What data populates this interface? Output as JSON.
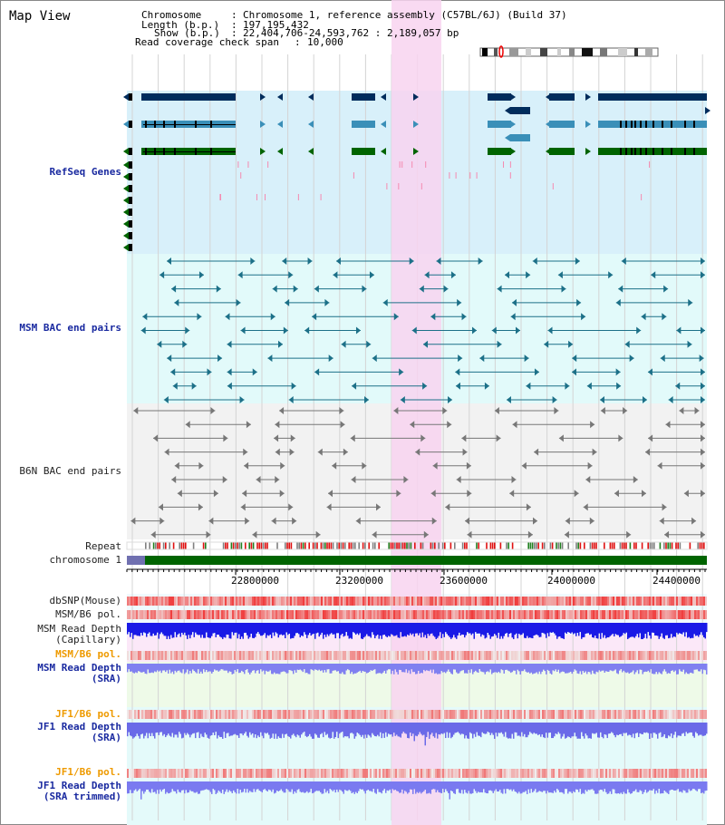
{
  "panel_title": "Map View",
  "header": {
    "chromosome_key": "Chromosome",
    "chromosome_val": "Chromosome 1, reference assembly (C57BL/6J) (Build 37)",
    "length_key": "Length (b.p.)",
    "length_val": "197,195,432",
    "show_key": "Show (b.p.)",
    "show_val": "22,404,706-24,593,762 : 2,189,057 bp",
    "read_cov_key": "Read coverage check span",
    "read_cov_val": "10,000"
  },
  "tracks": {
    "refseq": "RefSeq Genes",
    "msm_bac": "MSM BAC end pairs",
    "b6n_bac": "B6N BAC end pairs",
    "repeat": "Repeat",
    "chromosome": "chromosome 1",
    "dbsnp": "dbSNP(Mouse)",
    "msm_b6_pol": "MSM/B6 pol.",
    "msm_read_depth_cap_1": "MSM Read Depth",
    "msm_read_depth_cap_2": "(Capillary)",
    "msm_b6_pol_sra": "MSM/B6 pol.",
    "msm_read_depth_sra_1": "MSM Read Depth",
    "msm_read_depth_sra_2": "(SRA)",
    "jf1_b6_pol": "JF1/B6 pol.",
    "jf1_read_depth_1": "JF1 Read Depth",
    "jf1_read_depth_2": "(SRA)",
    "jf1_b6_pol_trim": "JF1/B6 pol.",
    "jf1_read_depth_trim_1": "JF1 Read Depth",
    "jf1_read_depth_trim_2": "(SRA trimmed)"
  },
  "ruler_ticks": [
    "22800000",
    "23200000",
    "23600000",
    "24000000",
    "24400000"
  ],
  "colors": {
    "refseq_bg": "#d8f0fa",
    "msm_bg": "#e2fafa",
    "b6n_bg": "#f2f2f2",
    "highlight": "#f8d4f0",
    "gene_dark": "#002c5c",
    "gene_mid": "#3a8fb8",
    "gene_green": "#006400",
    "bac_teal": "#1c7088",
    "bac_gray": "#777777"
  }
}
